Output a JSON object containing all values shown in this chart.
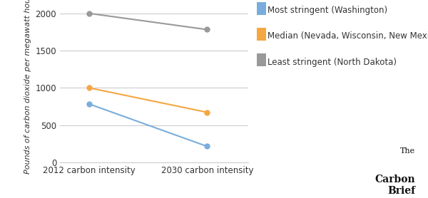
{
  "x_labels": [
    "2012 carbon intensity",
    "2030 carbon intensity"
  ],
  "series": [
    {
      "label": "Most stringent (Washington)",
      "color": "#7aaddc",
      "values": [
        783,
        215
      ]
    },
    {
      "label": "Median (Nevada, Wisconsin, New Mexico)",
      "color": "#f5a742",
      "values": [
        1000,
        672
      ]
    },
    {
      "label": "Least stringent (North Dakota)",
      "color": "#999999",
      "values": [
        2000,
        1783
      ]
    }
  ],
  "ylabel": "Pounds of carbon dioxide per megawatt hour",
  "ylim": [
    0,
    2100
  ],
  "yticks": [
    0,
    500,
    1000,
    1500,
    2000
  ],
  "background_color": "#ffffff",
  "plot_bg_color": "#ffffff",
  "grid_color": "#cccccc",
  "marker": "o",
  "markersize": 5,
  "linewidth": 1.5,
  "legend_fontsize": 8.5,
  "ylabel_fontsize": 8,
  "tick_fontsize": 8.5,
  "watermark_line1": "The",
  "watermark_line2": "Carbon",
  "watermark_line3": "Brief"
}
